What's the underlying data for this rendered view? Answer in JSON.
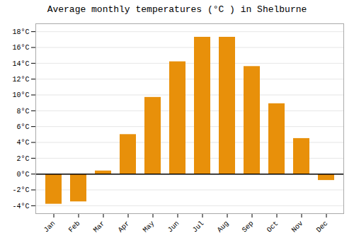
{
  "chart_data": {
    "type": "bar",
    "title": "Average monthly temperatures (°C ) in Shelburne",
    "categories": [
      "Jan",
      "Feb",
      "Mar",
      "Apr",
      "May",
      "Jun",
      "Jul",
      "Aug",
      "Sep",
      "Oct",
      "Nov",
      "Dec"
    ],
    "values": [
      -3.8,
      -3.5,
      0.4,
      5.0,
      9.7,
      14.2,
      17.3,
      17.3,
      13.6,
      8.9,
      4.5,
      -0.8
    ],
    "color": "#E8900A",
    "ylim": [
      -5,
      19
    ],
    "yticks": [
      {
        "value": -4,
        "label": "-4°C"
      },
      {
        "value": -2,
        "label": "-2°C"
      },
      {
        "value": 0,
        "label": "0°C"
      },
      {
        "value": 2,
        "label": "2°C"
      },
      {
        "value": 4,
        "label": "4°C"
      },
      {
        "value": 6,
        "label": "6°C"
      },
      {
        "value": 8,
        "label": "8°C"
      },
      {
        "value": 10,
        "label": "10°C"
      },
      {
        "value": 12,
        "label": "12°C"
      },
      {
        "value": 14,
        "label": "14°C"
      },
      {
        "value": 16,
        "label": "16°C"
      },
      {
        "value": 18,
        "label": "18°C"
      }
    ],
    "grid": true
  }
}
